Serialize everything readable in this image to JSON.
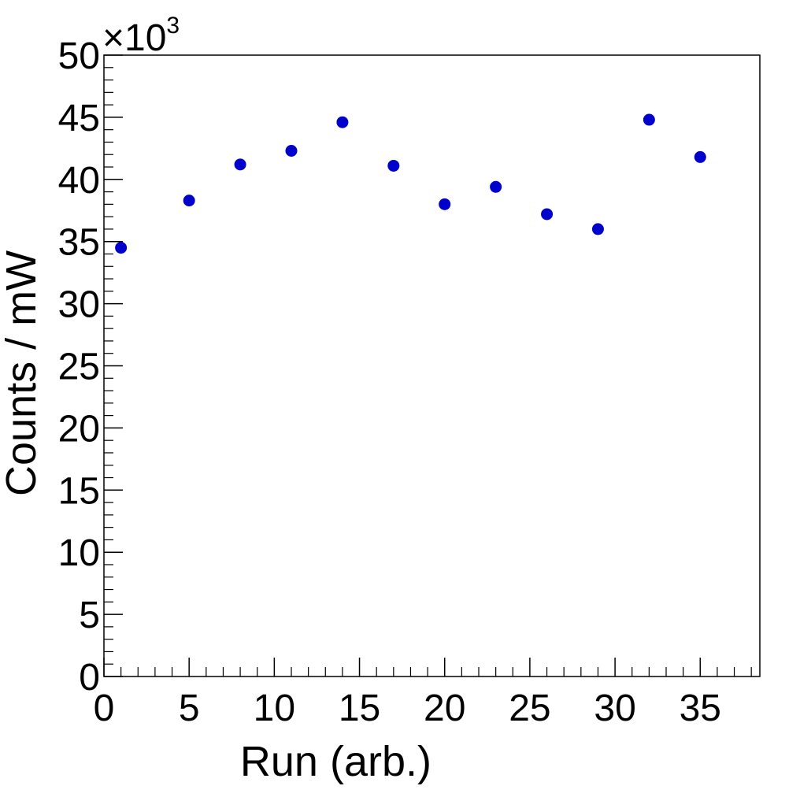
{
  "chart_data": {
    "type": "scatter",
    "xlabel": "Run (arb.)",
    "ylabel": "Counts / mW",
    "y_multiplier": {
      "base": "×10",
      "exponent": "3"
    },
    "xlim": [
      0,
      38.5
    ],
    "ylim": [
      0,
      50
    ],
    "x_ticks": [
      0,
      5,
      10,
      15,
      20,
      25,
      30,
      35
    ],
    "y_ticks": [
      0,
      5,
      10,
      15,
      20,
      25,
      30,
      35,
      40,
      45,
      50
    ],
    "grid": false,
    "marker_color": "#0000cc",
    "series": [
      {
        "x": [
          1,
          5,
          8,
          11,
          14,
          17,
          20,
          23,
          26,
          29,
          32,
          35
        ],
        "y": [
          34.5,
          38.3,
          41.2,
          42.3,
          44.6,
          41.1,
          38.0,
          39.4,
          37.2,
          36.0,
          44.8,
          41.8
        ]
      }
    ]
  }
}
